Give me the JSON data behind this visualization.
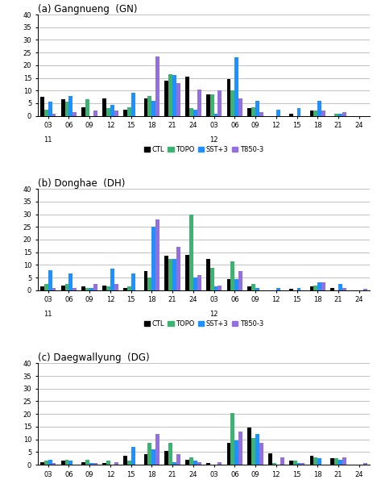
{
  "title_a": "(a) Gangnueng  (GN)",
  "title_b": "(b) Donghae  (DH)",
  "title_c": "(c) Daegwallyung  (DG)",
  "ylim": [
    0,
    40
  ],
  "yticks": [
    0,
    5,
    10,
    15,
    20,
    25,
    30,
    35,
    40
  ],
  "xtick_labels": [
    "03",
    "06",
    "09",
    "12",
    "15",
    "18",
    "21",
    "24",
    "03",
    "06",
    "09",
    "12",
    "15",
    "18",
    "21",
    "24"
  ],
  "colors": {
    "CTL": "#000000",
    "TOPO": "#3cb371",
    "SST+3": "#1e90ff",
    "T850-3": "#9370db"
  },
  "legend_labels": [
    "CTL",
    "TOPO",
    "SST+3",
    "T850-3"
  ],
  "GN": {
    "CTL": [
      7.5,
      6.5,
      3.5,
      7.0,
      2.5,
      7.0,
      14.0,
      15.5,
      8.5,
      14.5,
      3.0,
      0.0,
      1.0,
      2.0,
      0.0,
      0.0
    ],
    "TOPO": [
      2.5,
      5.5,
      6.5,
      3.0,
      3.5,
      8.0,
      16.5,
      3.0,
      8.5,
      10.0,
      3.5,
      0.0,
      0.0,
      2.0,
      1.0,
      0.0
    ],
    "SST+3": [
      5.5,
      8.0,
      0.0,
      4.5,
      9.0,
      6.0,
      16.0,
      2.5,
      1.0,
      23.0,
      6.0,
      2.5,
      3.0,
      6.0,
      1.0,
      0.0
    ],
    "T850-3": [
      1.0,
      1.5,
      2.0,
      2.0,
      0.0,
      23.5,
      13.0,
      10.5,
      10.0,
      7.0,
      1.5,
      0.0,
      0.0,
      2.0,
      1.5,
      0.0
    ]
  },
  "DH": {
    "CTL": [
      1.5,
      2.0,
      1.5,
      2.0,
      1.0,
      7.5,
      13.5,
      14.0,
      12.5,
      4.5,
      1.5,
      0.0,
      0.5,
      1.5,
      1.0,
      0.0
    ],
    "TOPO": [
      2.5,
      2.5,
      1.0,
      1.5,
      1.5,
      5.0,
      12.5,
      30.0,
      9.0,
      11.5,
      2.5,
      0.0,
      0.0,
      2.0,
      0.0,
      0.0
    ],
    "SST+3": [
      8.0,
      6.5,
      1.0,
      8.5,
      6.5,
      25.0,
      12.5,
      5.0,
      1.5,
      4.5,
      1.0,
      1.0,
      1.0,
      3.0,
      2.5,
      0.0
    ],
    "T850-3": [
      1.0,
      1.0,
      2.5,
      2.5,
      0.0,
      28.0,
      17.0,
      6.0,
      2.0,
      7.5,
      0.0,
      0.0,
      0.0,
      3.0,
      1.0,
      0.5
    ]
  },
  "DG": {
    "CTL": [
      1.0,
      1.5,
      1.0,
      0.5,
      3.5,
      4.0,
      5.5,
      2.0,
      0.5,
      8.5,
      14.5,
      4.5,
      1.5,
      3.5,
      2.5,
      0.0
    ],
    "TOPO": [
      1.5,
      2.0,
      2.0,
      1.5,
      1.5,
      8.5,
      8.5,
      3.0,
      0.0,
      20.5,
      10.5,
      0.5,
      1.5,
      3.0,
      2.5,
      0.0
    ],
    "SST+3": [
      2.0,
      1.5,
      0.5,
      0.0,
      7.0,
      6.0,
      1.0,
      1.5,
      0.0,
      9.5,
      12.0,
      0.0,
      0.5,
      2.5,
      2.0,
      0.0
    ],
    "T850-3": [
      0.5,
      0.0,
      0.5,
      1.0,
      0.0,
      12.0,
      4.0,
      1.0,
      1.0,
      13.0,
      8.5,
      3.0,
      0.5,
      0.0,
      3.0,
      0.5
    ]
  }
}
